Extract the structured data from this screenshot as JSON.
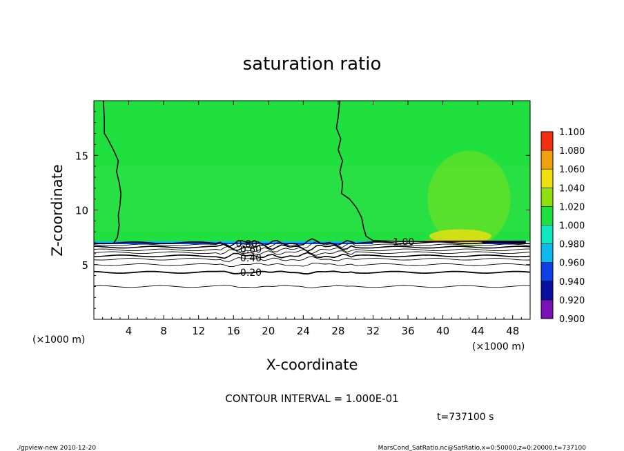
{
  "chart_data": {
    "type": "heatmap",
    "title": "saturation ratio",
    "xlabel": "X-coordinate",
    "ylabel": "Z-coordinate",
    "x_unit_left": "(×1000 m)",
    "x_unit_right": "(×1000 m)",
    "xlim": [
      0,
      50
    ],
    "ylim": [
      0,
      20
    ],
    "x_ticks": [
      4,
      8,
      12,
      16,
      20,
      24,
      28,
      32,
      36,
      40,
      44,
      48
    ],
    "y_ticks": [
      5,
      10,
      15
    ],
    "colorbar": {
      "levels": [
        0.9,
        0.92,
        0.94,
        0.96,
        0.98,
        1.0,
        1.02,
        1.04,
        1.06,
        1.08,
        1.1
      ],
      "level_labels": [
        "0.900",
        "0.920",
        "0.940",
        "0.960",
        "0.980",
        "1.000",
        "1.020",
        "1.040",
        "1.060",
        "1.080",
        "1.100"
      ],
      "colors": [
        "#7a10b8",
        "#0a10a0",
        "#1040e8",
        "#10b8f0",
        "#10e8c0",
        "#20e040",
        "#90e010",
        "#f0e010",
        "#f0a010",
        "#f03010",
        "#f08080"
      ]
    },
    "contour_labels": [
      {
        "text": "0.20",
        "x": 18,
        "z": 4.3
      },
      {
        "text": "0.40",
        "x": 18,
        "z": 5.6
      },
      {
        "text": "0.60",
        "x": 18,
        "z": 6.4
      },
      {
        "text": "0.80",
        "x": 17.5,
        "z": 6.9
      },
      {
        "text": "1.00",
        "x": 35.5,
        "z": 7.1
      }
    ],
    "contour_interval_text": "CONTOUR INTERVAL = 1.000E-01",
    "time_text": "t=737100 s"
  },
  "footer": {
    "left": "./gpview-new   2010-12-20",
    "right": "MarsCond_SatRatio.nc@SatRatio,x=0:50000,z=0:20000,t=737100"
  }
}
